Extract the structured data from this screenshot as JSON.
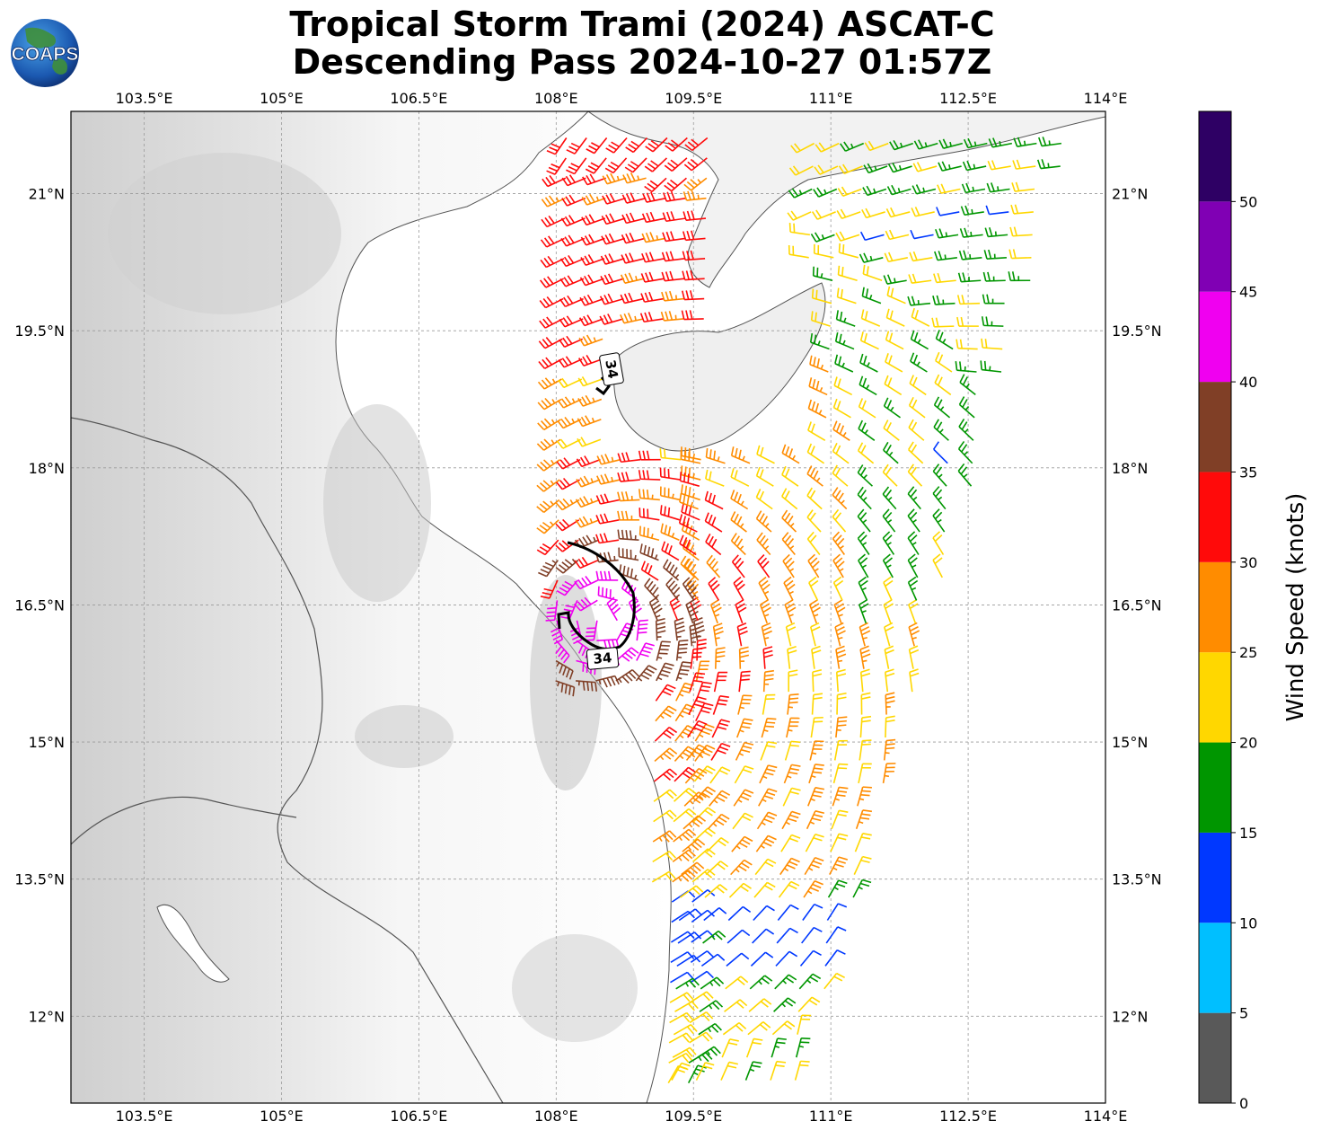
{
  "title": {
    "line1": "Tropical Storm Trami (2024) ASCAT-C",
    "line2": "Descending Pass 2024-10-27 01:57Z"
  },
  "logo": {
    "text": "COAPS"
  },
  "map": {
    "lon_range": [
      102.7,
      114.0
    ],
    "lat_range": [
      11.05,
      21.9
    ],
    "lon_ticks": [
      "103.5°E",
      "105°E",
      "106.5°E",
      "108°E",
      "109.5°E",
      "111°E",
      "112.5°E",
      "114°E"
    ],
    "lat_ticks": [
      "21°N",
      "19.5°N",
      "18°N",
      "16.5°N",
      "15°N",
      "13.5°N",
      "12°N"
    ],
    "grid": true,
    "background": "grayscale terrain"
  },
  "contours": {
    "label_34_a": "34",
    "label_34_b": "34"
  },
  "colorbar": {
    "label": "Wind Speed (knots)",
    "ticks": [
      "0",
      "5",
      "10",
      "15",
      "20",
      "25",
      "30",
      "35",
      "40",
      "45",
      "50"
    ],
    "colors": [
      "#595959",
      "#00bfff",
      "#0038ff",
      "#009600",
      "#ffd700",
      "#ff8c00",
      "#ff0a0a",
      "#803f26",
      "#f000f0",
      "#8000b4",
      "#2e0064"
    ]
  },
  "chart_data": {
    "type": "wind-barb map",
    "storm_center": {
      "lon": 108.5,
      "lat": 16.3
    },
    "wind_speed_bins_knots": [
      0,
      5,
      10,
      15,
      20,
      25,
      30,
      35,
      40,
      45,
      50,
      55
    ],
    "swaths": [
      {
        "lon_west": 108.0,
        "lon_east": 109.7,
        "lat_north": 21.7,
        "lat_south": 11.05
      },
      {
        "lon_west": 109.5,
        "lon_east": 113.8,
        "lat_north": 21.8,
        "lat_south": 11.05
      }
    ]
  }
}
